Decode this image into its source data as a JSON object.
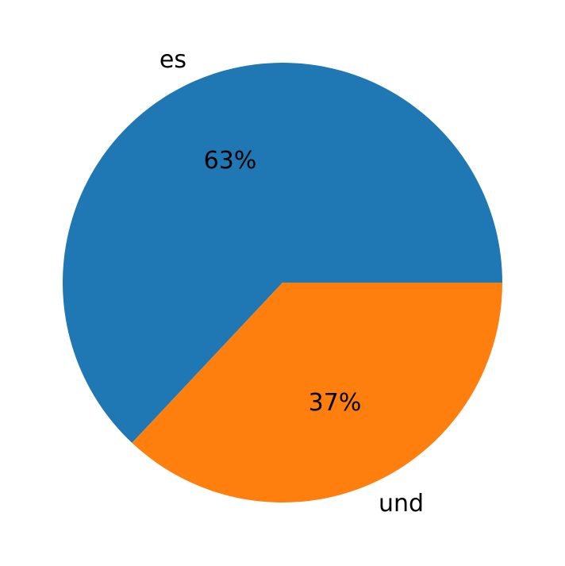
{
  "chart_data": {
    "type": "pie",
    "categories": [
      "es",
      "und"
    ],
    "values": [
      63,
      37
    ],
    "value_labels": [
      "63%",
      "37%"
    ],
    "colors": [
      "#1f77b4",
      "#ff7f0e"
    ]
  }
}
